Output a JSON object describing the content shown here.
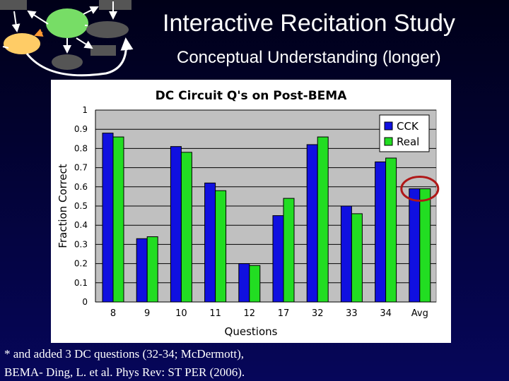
{
  "slide": {
    "title": "Interactive Recitation Study",
    "subtitle": "Conceptual Understanding (longer)",
    "footnote_lines": [
      "* and added 3 DC questions (32-34; McDermott),",
      "BEMA- Ding, L. et al. Phys Rev: ST PER (2006)."
    ]
  },
  "colors": {
    "CCK": "#1010e0",
    "Real": "#22dd22",
    "plot_bg": "#c0c0c0",
    "highlight_circle": "#b01818"
  },
  "chart_data": {
    "type": "bar",
    "title": "DC Circuit Q's on Post-BEMA",
    "xlabel": "Questions",
    "ylabel": "Fraction Correct",
    "ylim": [
      0,
      1
    ],
    "yticks": [
      "0",
      "0.1",
      "0.2",
      "0.3",
      "0.4",
      "0.5",
      "0.6",
      "0.7",
      "0.8",
      "0.9",
      "1"
    ],
    "categories": [
      "8",
      "9",
      "10",
      "11",
      "12",
      "17",
      "32",
      "33",
      "34",
      "Avg"
    ],
    "series": [
      {
        "name": "CCK",
        "values": [
          0.88,
          0.33,
          0.81,
          0.62,
          0.2,
          0.45,
          0.82,
          0.5,
          0.73,
          0.59
        ]
      },
      {
        "name": "Real",
        "values": [
          0.86,
          0.34,
          0.78,
          0.58,
          0.19,
          0.54,
          0.86,
          0.46,
          0.75,
          0.59
        ]
      }
    ],
    "legend_position": "top-right",
    "grid": true,
    "highlighted_category": "Avg"
  }
}
